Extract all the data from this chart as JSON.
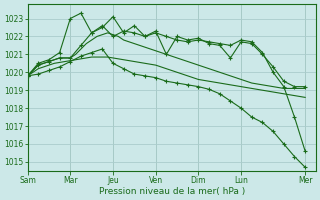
{
  "background_color": "#cce8e8",
  "grid_color": "#aacccc",
  "line_color": "#1a6b1a",
  "xlabel": "Pression niveau de la mer( hPa )",
  "ylim": [
    1014.5,
    1023.8
  ],
  "yticks": [
    1015,
    1016,
    1017,
    1018,
    1019,
    1020,
    1021,
    1022,
    1023
  ],
  "day_labels": [
    "Sam",
    "Mar",
    "Jeu",
    "Ven",
    "Dim",
    "Lun",
    "Mer"
  ],
  "day_positions": [
    0,
    8,
    16,
    24,
    32,
    40,
    52
  ],
  "xlim": [
    0,
    54
  ],
  "line1_x": [
    0,
    1,
    2,
    3,
    4,
    5,
    6,
    7,
    8,
    9,
    10,
    11,
    12,
    13,
    14,
    15,
    16,
    17,
    18,
    19,
    20,
    21,
    22,
    23,
    24,
    25,
    26,
    27,
    28,
    29,
    30,
    31,
    32,
    33,
    34,
    35,
    36,
    37,
    38,
    39,
    40,
    41,
    42,
    43,
    44,
    45,
    46,
    47,
    48,
    49,
    50,
    51,
    52
  ],
  "line1_y": [
    1019.8,
    1020.1,
    1020.4,
    1020.5,
    1020.6,
    1020.7,
    1020.8,
    1020.8,
    1020.8,
    1021.0,
    1021.3,
    1021.6,
    1021.8,
    1022.0,
    1022.1,
    1022.2,
    1022.1,
    1022.0,
    1021.8,
    1021.7,
    1021.6,
    1021.5,
    1021.4,
    1021.3,
    1021.2,
    1021.1,
    1021.0,
    1020.9,
    1020.8,
    1020.7,
    1020.6,
    1020.5,
    1020.4,
    1020.3,
    1020.2,
    1020.1,
    1020.0,
    1019.9,
    1019.8,
    1019.7,
    1019.6,
    1019.5,
    1019.4,
    1019.35,
    1019.3,
    1019.25,
    1019.2,
    1019.15,
    1019.1,
    1019.1,
    1019.1,
    1019.1,
    1019.1
  ],
  "line2_x": [
    0,
    1,
    2,
    3,
    4,
    5,
    6,
    7,
    8,
    9,
    10,
    11,
    12,
    13,
    14,
    15,
    16,
    17,
    18,
    19,
    20,
    21,
    22,
    23,
    24,
    25,
    26,
    27,
    28,
    29,
    30,
    31,
    32,
    33,
    34,
    35,
    36,
    37,
    38,
    39,
    40,
    41,
    42,
    43,
    44,
    45,
    46,
    47,
    48,
    49,
    50,
    51,
    52
  ],
  "line2_y": [
    1019.8,
    1020.0,
    1020.2,
    1020.3,
    1020.4,
    1020.5,
    1020.55,
    1020.6,
    1020.65,
    1020.7,
    1020.75,
    1020.8,
    1020.85,
    1020.85,
    1020.85,
    1020.85,
    1020.8,
    1020.75,
    1020.7,
    1020.65,
    1020.6,
    1020.55,
    1020.5,
    1020.45,
    1020.4,
    1020.3,
    1020.2,
    1020.1,
    1020.0,
    1019.9,
    1019.8,
    1019.7,
    1019.6,
    1019.55,
    1019.5,
    1019.45,
    1019.4,
    1019.35,
    1019.3,
    1019.25,
    1019.2,
    1019.15,
    1019.1,
    1019.05,
    1019.0,
    1018.95,
    1018.9,
    1018.85,
    1018.8,
    1018.75,
    1018.7,
    1018.65,
    1018.6
  ],
  "line3_x": [
    0,
    2,
    4,
    6,
    8,
    10,
    12,
    14,
    16,
    18,
    20,
    22,
    24,
    26,
    28,
    30,
    32,
    34,
    36,
    38,
    40,
    42,
    44,
    46,
    48,
    50,
    52
  ],
  "line3_y": [
    1019.8,
    1020.4,
    1020.6,
    1020.8,
    1020.8,
    1021.5,
    1022.2,
    1022.5,
    1023.1,
    1022.2,
    1022.6,
    1022.0,
    1022.3,
    1021.0,
    1022.0,
    1021.8,
    1021.9,
    1021.6,
    1021.5,
    1020.8,
    1021.7,
    1021.6,
    1021.0,
    1020.3,
    1019.5,
    1019.2,
    1019.2
  ],
  "line4_x": [
    0,
    2,
    4,
    6,
    8,
    10,
    12,
    14,
    16,
    18,
    20,
    22,
    24,
    26,
    28,
    30,
    32,
    34,
    36,
    38,
    40,
    42,
    44,
    46,
    48,
    50,
    52
  ],
  "line4_y": [
    1019.8,
    1019.9,
    1020.1,
    1020.3,
    1020.6,
    1020.9,
    1021.1,
    1021.3,
    1020.5,
    1020.2,
    1019.9,
    1019.8,
    1019.7,
    1019.5,
    1019.4,
    1019.3,
    1019.2,
    1019.05,
    1018.8,
    1018.4,
    1018.0,
    1017.5,
    1017.2,
    1016.7,
    1016.0,
    1015.3,
    1014.7
  ],
  "line5_x": [
    0,
    2,
    4,
    6,
    8,
    10,
    12,
    14,
    16,
    18,
    20,
    22,
    24,
    26,
    28,
    30,
    32,
    34,
    36,
    38,
    40,
    42,
    44,
    46,
    48,
    50,
    52
  ],
  "line5_y": [
    1019.8,
    1020.5,
    1020.7,
    1021.1,
    1023.0,
    1023.3,
    1022.2,
    1022.6,
    1022.0,
    1022.3,
    1022.2,
    1022.0,
    1022.2,
    1022.0,
    1021.8,
    1021.7,
    1021.8,
    1021.7,
    1021.6,
    1021.5,
    1021.8,
    1021.7,
    1021.1,
    1020.0,
    1019.2,
    1017.5,
    1015.6
  ]
}
